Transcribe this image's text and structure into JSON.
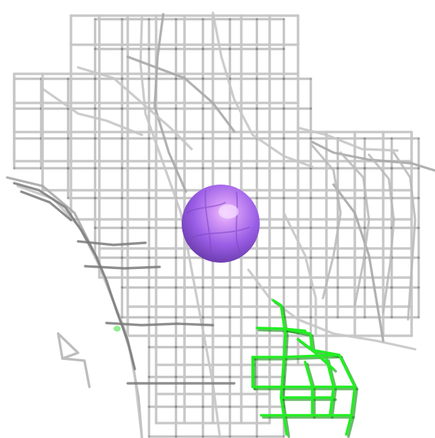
{
  "scene": {
    "background_color": "#ffffff",
    "primary_mesh_color": "#c6c6c6",
    "primary_mesh_shadow_color": "#7a7a7a",
    "secondary_mesh_color": "#22ee22",
    "secondary_mesh_shadow_color": "#0a8a0a",
    "atom_color": "#9a5ee6",
    "atom_highlight_color": "#f2c8ff",
    "small_blob_color": "#8ef08e"
  }
}
